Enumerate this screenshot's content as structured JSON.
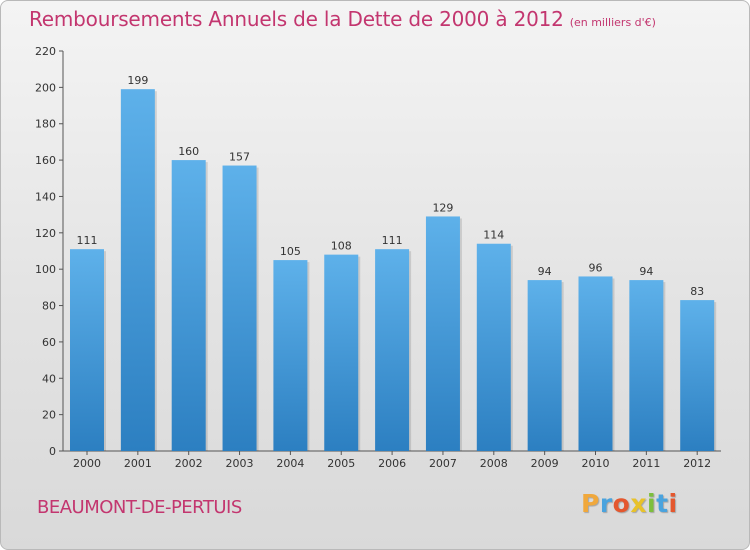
{
  "title": "Remboursements Annuels de la Dette de 2000 à 2012",
  "subtitle": "(en milliers d'€)",
  "location": "BEAUMONT-DE-PERTUIS",
  "brand": "Proxiti",
  "colors": {
    "title": "#c3366f",
    "bar_top": "#5eb1ea",
    "bar_bottom": "#2c7fc1",
    "logo_letters": [
      "#f0a83c",
      "#4aa3de",
      "#e4572e",
      "#e8c22a",
      "#7cbf3d",
      "#4aa3de",
      "#e4572e"
    ]
  },
  "chart_data": {
    "type": "bar",
    "categories": [
      "2000",
      "2001",
      "2002",
      "2003",
      "2004",
      "2005",
      "2006",
      "2007",
      "2008",
      "2009",
      "2010",
      "2011",
      "2012"
    ],
    "values": [
      111,
      199,
      160,
      157,
      105,
      108,
      111,
      129,
      114,
      94,
      96,
      94,
      83
    ],
    "ylim": [
      0,
      220
    ],
    "yticks": [
      0,
      20,
      40,
      60,
      80,
      100,
      120,
      140,
      160,
      180,
      200,
      220
    ],
    "grid": false,
    "legend": "none",
    "data_labels": true
  }
}
